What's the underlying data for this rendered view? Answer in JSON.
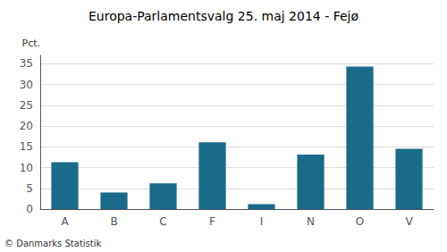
{
  "chart_data": {
    "type": "bar",
    "title": "Europa-Parlamentsvalg 25. maj 2014 - Fejø",
    "categories": [
      "A",
      "B",
      "C",
      "F",
      "I",
      "N",
      "O",
      "V"
    ],
    "values": [
      11.3,
      4.0,
      6.2,
      16.1,
      1.2,
      13.1,
      34.3,
      14.5
    ],
    "color": "#1a6b8a",
    "ylabel": "Pct.",
    "ylim": [
      0,
      37
    ],
    "yticks": [
      0,
      5,
      10,
      15,
      20,
      25,
      30,
      35
    ],
    "grid": true,
    "annotations": [
      "© Danmarks Statistik"
    ]
  }
}
